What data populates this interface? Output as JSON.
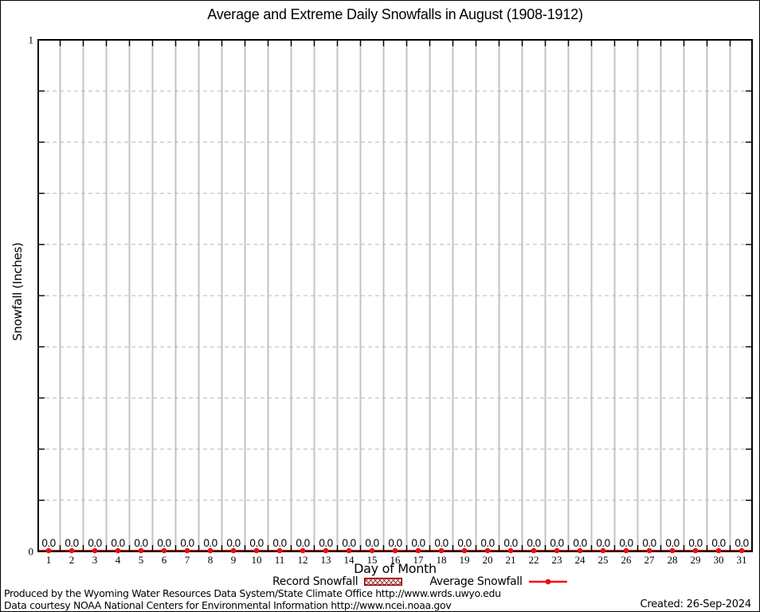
{
  "colors": {
    "axis": "#000000",
    "grid_vertical": "#c3c3c3",
    "grid_horizontal": "#b9b9b9",
    "line_red": "#ff0000",
    "marker_red": "#e31212",
    "hatch_dark_red": "#8b0000",
    "text": "#000000"
  },
  "chart_data": {
    "type": "line",
    "title": "Average and Extreme Daily Snowfalls in August (1908-1912)",
    "xlabel": "Day of Month",
    "ylabel": "Snowfall (Inches)",
    "ylim": [
      0,
      1
    ],
    "ytick_labels": [
      {
        "value": 0,
        "label": "0"
      },
      {
        "value": 1,
        "label": "1"
      }
    ],
    "y_minor_step": 0.1,
    "x_grid_on_half_positions": true,
    "grid": true,
    "legend_position": "bottom",
    "categories": [
      1,
      2,
      3,
      4,
      5,
      6,
      7,
      8,
      9,
      10,
      11,
      12,
      13,
      14,
      15,
      16,
      17,
      18,
      19,
      20,
      21,
      22,
      23,
      24,
      25,
      26,
      27,
      28,
      29,
      30,
      31
    ],
    "series": [
      {
        "name": "Record Snowfall",
        "style": "hatched-box",
        "values": [
          0.0,
          0.0,
          0.0,
          0.0,
          0.0,
          0.0,
          0.0,
          0.0,
          0.0,
          0.0,
          0.0,
          0.0,
          0.0,
          0.0,
          0.0,
          0.0,
          0.0,
          0.0,
          0.0,
          0.0,
          0.0,
          0.0,
          0.0,
          0.0,
          0.0,
          0.0,
          0.0,
          0.0,
          0.0,
          0.0,
          0.0
        ]
      },
      {
        "name": "Average Snowfall",
        "style": "line-points",
        "values": [
          0.0,
          0.0,
          0.0,
          0.0,
          0.0,
          0.0,
          0.0,
          0.0,
          0.0,
          0.0,
          0.0,
          0.0,
          0.0,
          0.0,
          0.0,
          0.0,
          0.0,
          0.0,
          0.0,
          0.0,
          0.0,
          0.0,
          0.0,
          0.0,
          0.0,
          0.0,
          0.0,
          0.0,
          0.0,
          0.0,
          0.0
        ]
      }
    ],
    "point_label_decimals": 1
  },
  "footer": {
    "line1": "Produced by the Wyoming Water Resources Data System/State Climate Office http://www.wrds.uwyo.edu",
    "line2": "Data courtesy NOAA National Centers for Environmental Information http://www.ncei.noaa.gov",
    "created": "Created: 26-Sep-2024"
  }
}
